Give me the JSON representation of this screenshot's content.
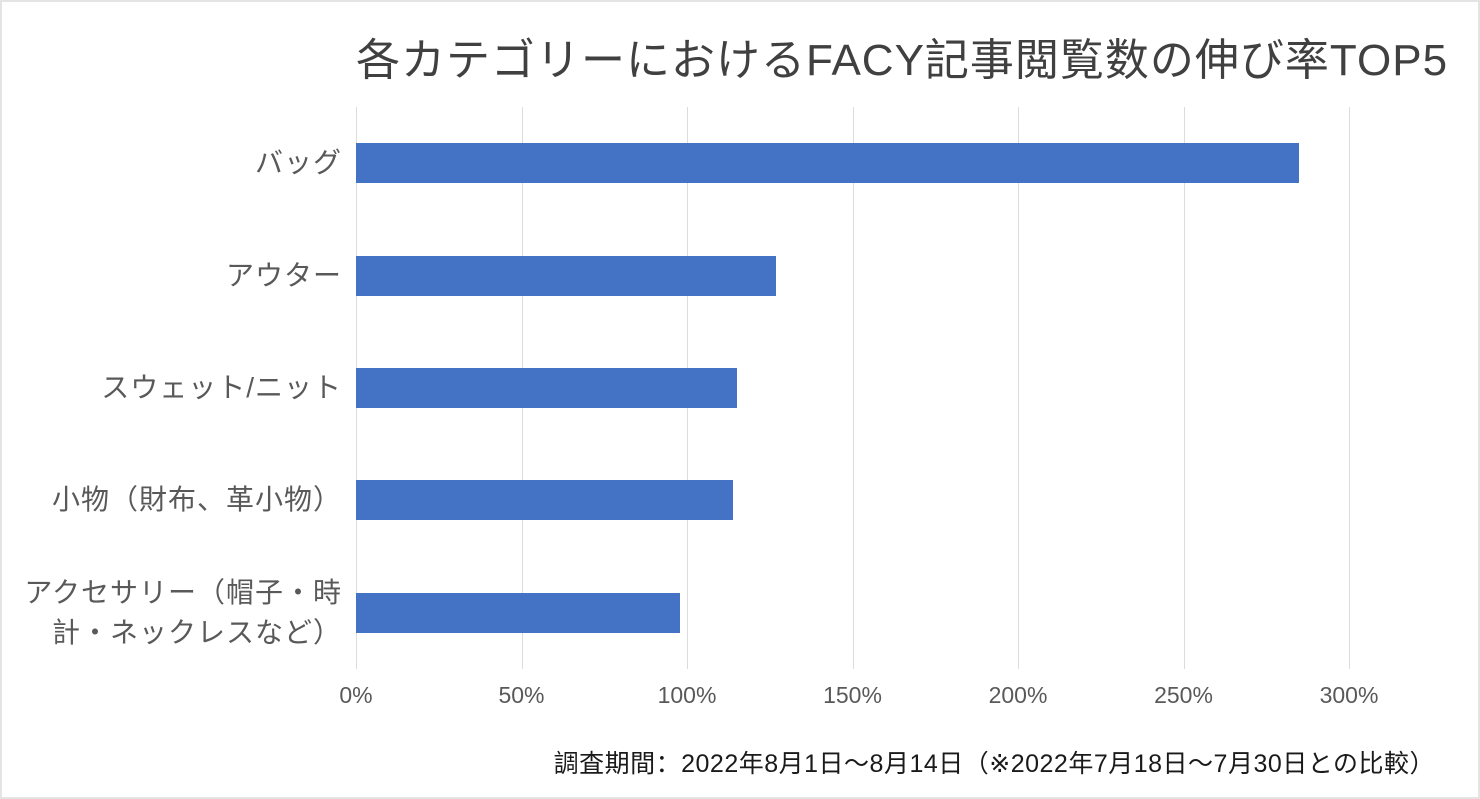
{
  "chart_data": {
    "type": "bar",
    "orientation": "horizontal",
    "title": "各カテゴリーにおけるFACY記事閲覧数の伸び率TOP5",
    "categories": [
      "バッグ",
      "アウター",
      "スウェット/ニット",
      "小物（財布、革小物）",
      "アクセサリー（帽子・時計・ネックレスなど）"
    ],
    "values": [
      285,
      127,
      115,
      114,
      98
    ],
    "unit": "%",
    "xlim": [
      0,
      300
    ],
    "x_ticks": [
      "0%",
      "50%",
      "100%",
      "150%",
      "200%",
      "250%",
      "300%"
    ],
    "grid": true,
    "legend": "none",
    "caption": "調査期間：2022年8月1日〜8月14日（※2022年7月18日〜7月30日との比較）",
    "colors": {
      "bar": "#4472C4",
      "gridline": "#dcdcdc",
      "title_text": "#404040",
      "axis_text": "#595959",
      "caption_text": "#1a1a1a"
    }
  }
}
